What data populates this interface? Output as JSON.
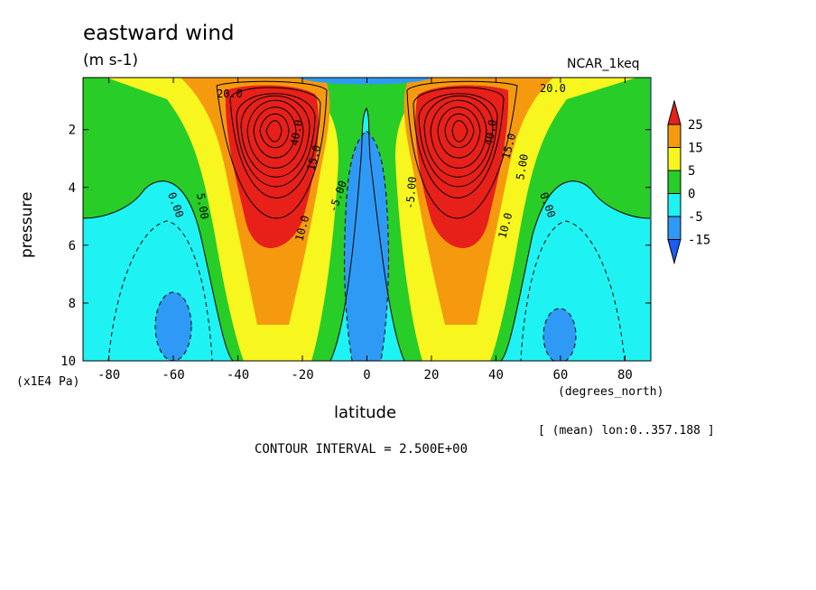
{
  "chart_data": {
    "type": "contour",
    "title": "eastward wind",
    "units": "(m s-1)",
    "dataset_label": "NCAR_1keq",
    "ylabel": "pressure",
    "yunit": "(x1E4 Pa)",
    "xlabel": "latitude",
    "xunit": "(degrees_north)",
    "mean_note": "[ (mean) lon:0..357.188 ]",
    "contour_interval_text": "CONTOUR INTERVAL = 2.500E+00",
    "x_ticks": [
      -80,
      -60,
      -40,
      -20,
      0,
      20,
      40,
      60,
      80
    ],
    "x_tick_labels": [
      "-80",
      "-60",
      "-40",
      "-20",
      "0",
      "20",
      "40",
      "60",
      "80"
    ],
    "y_ticks": [
      2,
      4,
      6,
      8,
      10
    ],
    "y_tick_labels": [
      "2",
      "4",
      "6",
      "8",
      "10"
    ],
    "xlim": [
      -88,
      88
    ],
    "ylim": [
      10,
      0.2
    ],
    "y_inverted": true,
    "contour_interval": 2.5,
    "jets": [
      {
        "lat": -30,
        "pressure": 2,
        "max_value": 40
      },
      {
        "lat": 30,
        "pressure": 2,
        "max_value": 40
      }
    ],
    "colorbar": {
      "labels": [
        "25",
        "15",
        "5",
        "0",
        "-5",
        "-15"
      ],
      "colors": [
        "#e8201a",
        "#f59a0f",
        "#f8f61f",
        "#28cd28",
        "#1ff2f2",
        "#2f9af5",
        "#1c5cf0"
      ]
    },
    "contour_labels": [
      "0.00",
      "5.00",
      "10.0",
      "15.0",
      "20.0",
      "25.0",
      "30.0",
      "35.0",
      "40.0",
      "-5.00"
    ]
  }
}
